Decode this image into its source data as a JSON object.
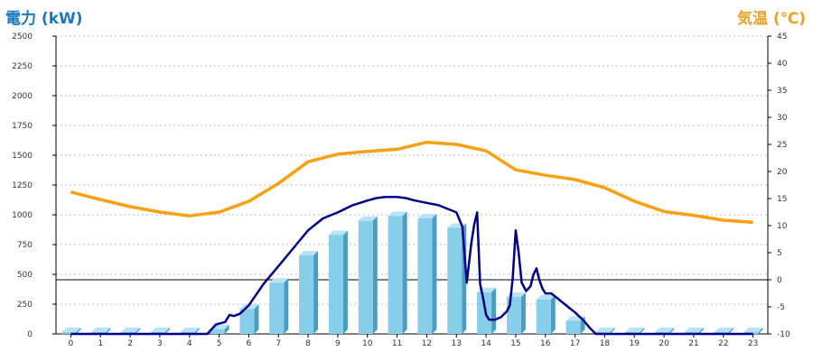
{
  "left_title": "電力 (kW)",
  "right_title": "気温 (℃)",
  "colors": {
    "bar_front": "#87ceea",
    "bar_side": "#4a9cc0",
    "bar_top": "#b7e3f5",
    "power_line": "#00008b",
    "temp_line": "#f8a010",
    "left_title": "#1a78c2",
    "right_title": "#f0a020"
  },
  "chart_data": {
    "type": "bar+line",
    "title": "",
    "categories": [
      "0",
      "1",
      "2",
      "3",
      "4",
      "5",
      "6",
      "7",
      "8",
      "9",
      "10",
      "11",
      "12",
      "13",
      "14",
      "15",
      "16",
      "17",
      "18",
      "19",
      "20",
      "21",
      "22",
      "23"
    ],
    "y_left": {
      "label": "電力 (kW)",
      "range": [
        0,
        2500
      ],
      "ticks": [
        0,
        250,
        500,
        750,
        1000,
        1250,
        1500,
        1750,
        2000,
        2250,
        2500
      ]
    },
    "y_right": {
      "label": "気温 (℃)",
      "range": [
        -10,
        45
      ],
      "ticks": [
        -10,
        -5,
        0,
        5,
        10,
        15,
        20,
        25,
        30,
        35,
        40,
        45
      ]
    },
    "grid": true,
    "bars": {
      "axis": "left",
      "values": [
        0,
        0,
        0,
        0,
        0,
        40,
        210,
        430,
        660,
        830,
        950,
        990,
        970,
        890,
        350,
        310,
        290,
        110,
        0,
        0,
        0,
        0,
        0,
        0
      ]
    },
    "power_line": {
      "axis": "left",
      "x": [
        0,
        1,
        2,
        3,
        4,
        4.6,
        4.9,
        5.2,
        5.35,
        5.5,
        5.7,
        6,
        6.5,
        7,
        7.5,
        8,
        8.5,
        9,
        9.5,
        10,
        10.3,
        10.6,
        10.8,
        11,
        11.3,
        11.6,
        12,
        12.4,
        12.7,
        13,
        13.2,
        13.35,
        13.5,
        13.6,
        13.7,
        13.8,
        13.9,
        14,
        14.1,
        14.3,
        14.5,
        14.7,
        14.8,
        14.9,
        15,
        15.1,
        15.2,
        15.35,
        15.5,
        15.6,
        15.7,
        15.8,
        15.9,
        16,
        16.2,
        16.4,
        16.6,
        16.8,
        17,
        17.3,
        17.5,
        17.7,
        18,
        19,
        20,
        21,
        22,
        23
      ],
      "y": [
        0,
        0,
        0,
        0,
        0,
        0,
        80,
        100,
        160,
        150,
        170,
        240,
        420,
        570,
        720,
        870,
        970,
        1020,
        1080,
        1120,
        1140,
        1150,
        1150,
        1150,
        1140,
        1120,
        1100,
        1080,
        1050,
        1020,
        900,
        430,
        760,
        920,
        1020,
        420,
        300,
        160,
        120,
        120,
        140,
        190,
        240,
        470,
        870,
        680,
        430,
        360,
        400,
        500,
        550,
        450,
        380,
        340,
        340,
        300,
        260,
        220,
        180,
        110,
        50,
        0,
        0,
        0,
        0,
        0,
        0,
        0
      ]
    },
    "temperature_line": {
      "axis": "right",
      "x": [
        0,
        1,
        2,
        3,
        4,
        5,
        6,
        7,
        8,
        9,
        10,
        11,
        12,
        13,
        14,
        15,
        16,
        17,
        18,
        19,
        20,
        21,
        22,
        23
      ],
      "y": [
        16.2,
        14.8,
        13.5,
        12.5,
        11.8,
        12.5,
        14.5,
        17.8,
        21.8,
        23.2,
        23.7,
        24.1,
        25.4,
        25,
        23.8,
        20.3,
        19.3,
        18.5,
        17,
        14.5,
        12.6,
        11.9,
        11,
        10.6
      ]
    }
  }
}
